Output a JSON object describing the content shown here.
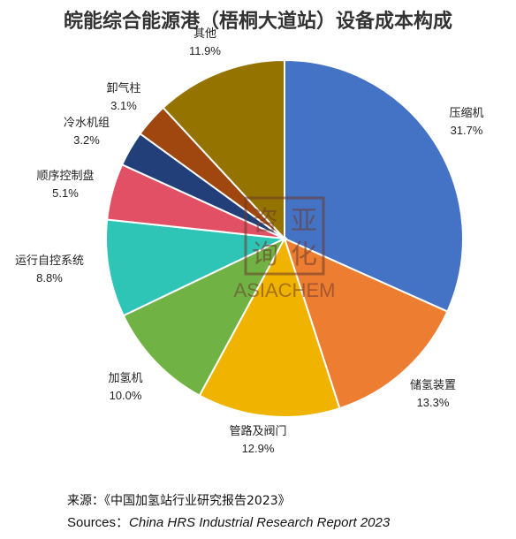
{
  "chart_data": {
    "type": "pie",
    "title": "皖能综合能源港（梧桐大道站）设备成本构成",
    "slices": [
      {
        "label": "压缩机",
        "value": 31.7,
        "value_label": "31.7%",
        "color": "#4472C4"
      },
      {
        "label": "储氢装置",
        "value": 13.3,
        "value_label": "13.3%",
        "color": "#ED7D31"
      },
      {
        "label": "管路及阀门",
        "value": 12.9,
        "value_label": "12.9%",
        "color": "#F0B400"
      },
      {
        "label": "加氢机",
        "value": 10.0,
        "value_label": "10.0%",
        "color": "#70B244"
      },
      {
        "label": "运行自控系统",
        "value": 8.8,
        "value_label": "8.8%",
        "color": "#2EC4B6"
      },
      {
        "label": "顺序控制盘",
        "value": 5.1,
        "value_label": "5.1%",
        "color": "#E15064"
      },
      {
        "label": "冷水机组",
        "value": 3.2,
        "value_label": "3.2%",
        "color": "#233F7A"
      },
      {
        "label": "卸气柱",
        "value": 3.1,
        "value_label": "3.1%",
        "color": "#A0460F"
      },
      {
        "label": "其他",
        "value": 11.9,
        "value_label": "11.9%",
        "color": "#957300"
      }
    ]
  },
  "watermark": {
    "seal_chars": "咨亚询化",
    "brand": "ASIACHEM"
  },
  "source": {
    "cn": "来源：《中国加氢站行业研究报告2023》",
    "en_prefix": "Sources：",
    "en_title": "China HRS  Industrial Research Report 2023"
  }
}
